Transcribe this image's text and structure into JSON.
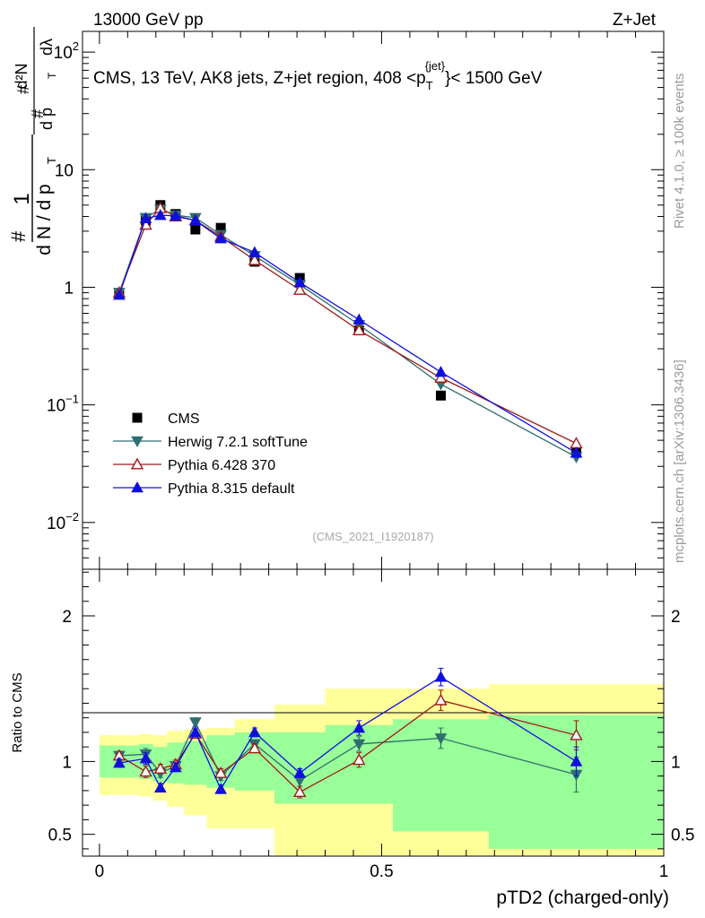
{
  "header": {
    "left": "13000 GeV pp",
    "right": "Z+Jet"
  },
  "side_labels": {
    "rivet": "Rivet 4.1.0, ≥ 100k events",
    "mcplots": "mcplots.cern.ch [arXiv:1306.3436]"
  },
  "chart_data": [
    {
      "type": "scatter",
      "panel": "main",
      "title": "CMS, 13 TeV, AK8 jets, Z+jet region, 408 <p_T^{jet}> < 1500 GeV",
      "title_parts": {
        "prefix": "CMS, 13 TeV, AK8 jets, Z+jet region, 408 <p",
        "sub": "T",
        "sup": "{jet}",
        "suffix": "}< 1500 GeV"
      },
      "ylabel": "1/(dN / dp_T) d²N/(dp_T dλ)",
      "ylabel_parts": {
        "hash": "#",
        "one": "1",
        "den": "d N / d p",
        "t": "T",
        "d2n": "d²N",
        "numden": "d p",
        "dl": "dλ"
      },
      "yscale": "log",
      "ylim": [
        0.004,
        150
      ],
      "xlim": [
        -0.03,
        1.0
      ],
      "y_ticks": [
        {
          "value": 0.01,
          "base": "10",
          "exp": "−2"
        },
        {
          "value": 0.1,
          "base": "10",
          "exp": "−1"
        },
        {
          "value": 1,
          "base": "1",
          "exp": ""
        },
        {
          "value": 10,
          "base": "10",
          "exp": ""
        },
        {
          "value": 100,
          "base": "10",
          "exp": "2"
        }
      ],
      "watermark": "(CMS_2021_I1920187)",
      "x": [
        0.035,
        0.082,
        0.108,
        0.135,
        0.17,
        0.215,
        0.275,
        0.355,
        0.46,
        0.605,
        0.845
      ],
      "series": [
        {
          "name": "CMS",
          "marker": "square",
          "color": "#000000",
          "values": [
            0.88,
            3.7,
            5.0,
            4.2,
            3.1,
            3.2,
            1.65,
            1.2,
            0.43,
            0.12,
            0.04
          ]
        },
        {
          "name": "Herwig 7.2.1 softTune",
          "marker": "triangle-down",
          "color": "#2f6f6f",
          "values": [
            0.9,
            3.9,
            4.6,
            4.1,
            3.9,
            2.8,
            1.85,
            1.05,
            0.48,
            0.15,
            0.036
          ]
        },
        {
          "name": "Pythia 6.428 370",
          "marker": "triangle-open",
          "color": "#9e1b1b",
          "values": [
            0.9,
            3.4,
            4.7,
            4.0,
            3.7,
            2.7,
            1.7,
            0.95,
            0.43,
            0.17,
            0.047
          ]
        },
        {
          "name": "Pythia 8.315 default",
          "marker": "triangle-up",
          "color": "#1010dd",
          "values": [
            0.86,
            3.85,
            4.1,
            4.05,
            3.7,
            2.6,
            1.98,
            1.1,
            0.53,
            0.19,
            0.039
          ]
        }
      ]
    },
    {
      "type": "scatter",
      "panel": "ratio",
      "ylabel": "Ratio to CMS",
      "xlabel": "pTD2 (charged-only)",
      "ylim": [
        0.35,
        2.32
      ],
      "xlim": [
        -0.03,
        1.0
      ],
      "y_ticks": [
        {
          "value": 0.5,
          "label": "0.5"
        },
        {
          "value": 1,
          "label": "1"
        },
        {
          "value": 2,
          "label": "2"
        }
      ],
      "x_ticks": [
        {
          "value": 0,
          "label": "0"
        },
        {
          "value": 0.5,
          "label": "0.5"
        },
        {
          "value": 1,
          "label": "1"
        }
      ],
      "bands": {
        "bin_edges": [
          0,
          0.07,
          0.095,
          0.12,
          0.15,
          0.19,
          0.24,
          0.31,
          0.4,
          0.52,
          0.69,
          1.0
        ],
        "green": [
          [
            0.89,
            1.11
          ],
          [
            0.88,
            1.12
          ],
          [
            0.86,
            1.1
          ],
          [
            0.85,
            1.13
          ],
          [
            0.84,
            1.14
          ],
          [
            0.82,
            1.18
          ],
          [
            0.8,
            1.2
          ],
          [
            0.71,
            1.2
          ],
          [
            0.71,
            1.25
          ],
          [
            0.52,
            1.29
          ],
          [
            0.4,
            1.32
          ]
        ],
        "yellow": [
          [
            0.77,
            1.18
          ],
          [
            0.76,
            1.19
          ],
          [
            0.73,
            1.18
          ],
          [
            0.69,
            1.21
          ],
          [
            0.63,
            1.22
          ],
          [
            0.54,
            1.23
          ],
          [
            0.54,
            1.29
          ],
          [
            0.35,
            1.39
          ],
          [
            0.35,
            1.5
          ],
          [
            0.35,
            1.5
          ],
          [
            0.35,
            1.53
          ]
        ]
      },
      "series": [
        {
          "name": "Herwig 7.2.1 softTune",
          "marker": "triangle-down",
          "color": "#2f6f6f",
          "values": [
            1.04,
            1.05,
            0.92,
            0.97,
            1.27,
            0.9,
            1.12,
            0.87,
            1.12,
            1.16,
            0.91
          ],
          "errors": [
            0.03,
            0.04,
            0.03,
            0.03,
            0.03,
            0.03,
            0.03,
            0.04,
            0.05,
            0.07,
            0.12
          ]
        },
        {
          "name": "Pythia 6.428 370",
          "marker": "triangle-open",
          "color": "#9e1b1b",
          "values": [
            1.04,
            0.93,
            0.95,
            0.98,
            1.19,
            0.92,
            1.09,
            0.79,
            1.01,
            1.42,
            1.18
          ],
          "errors": [
            0.03,
            0.04,
            0.03,
            0.03,
            0.03,
            0.03,
            0.03,
            0.04,
            0.05,
            0.07,
            0.1
          ]
        },
        {
          "name": "Pythia 8.315 default",
          "marker": "triangle-up",
          "color": "#1010dd",
          "values": [
            0.99,
            1.02,
            0.82,
            0.96,
            1.2,
            0.81,
            1.2,
            0.92,
            1.23,
            1.58,
            1.0
          ],
          "errors": [
            0.03,
            0.04,
            0.03,
            0.03,
            0.03,
            0.03,
            0.03,
            0.03,
            0.05,
            0.06,
            0.1
          ]
        }
      ]
    }
  ]
}
